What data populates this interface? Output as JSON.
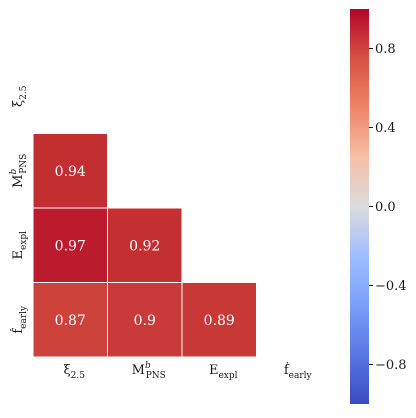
{
  "chart_data": {
    "type": "heatmap",
    "mask": "upper triangle including diagonal",
    "row_labels": [
      {
        "base": "ξ",
        "sub": "2.5",
        "sup": ""
      },
      {
        "base": "M",
        "sub": "PNS",
        "sup": "b"
      },
      {
        "base": "E",
        "sub": "expl",
        "sup": ""
      },
      {
        "base": "ḟ",
        "sub": "early",
        "sup": ""
      }
    ],
    "col_labels": [
      {
        "base": "ξ",
        "sub": "2.5",
        "sup": ""
      },
      {
        "base": "M",
        "sub": "PNS",
        "sup": "b"
      },
      {
        "base": "E",
        "sub": "expl",
        "sup": ""
      },
      {
        "base": "ḟ",
        "sub": "early",
        "sup": ""
      }
    ],
    "cells": [
      {
        "row": 1,
        "col": 0,
        "value": 0.94,
        "label": "0.94"
      },
      {
        "row": 2,
        "col": 0,
        "value": 0.97,
        "label": "0.97"
      },
      {
        "row": 2,
        "col": 1,
        "value": 0.92,
        "label": "0.92"
      },
      {
        "row": 3,
        "col": 0,
        "value": 0.87,
        "label": "0.87"
      },
      {
        "row": 3,
        "col": 1,
        "value": 0.9,
        "label": "0.9"
      },
      {
        "row": 3,
        "col": 2,
        "value": 0.89,
        "label": "0.89"
      }
    ],
    "colorbar": {
      "colormap": "coolwarm",
      "vmin": -1,
      "vmax": 1,
      "ticks": [
        0.8,
        0.4,
        0.0,
        -0.4,
        -0.8
      ],
      "tick_labels": [
        "0.8",
        "0.4",
        "0.0",
        "−0.4",
        "−0.8"
      ]
    },
    "colors": {
      "cell_0.97": "#bb1b2c",
      "cell_0.94": "#c32e31",
      "cell_0.92": "#c43032",
      "cell_0.90": "#c93a3a",
      "cell_0.89": "#c83837",
      "cell_0.87": "#cd423b",
      "grid_line": "#ffffff"
    }
  }
}
